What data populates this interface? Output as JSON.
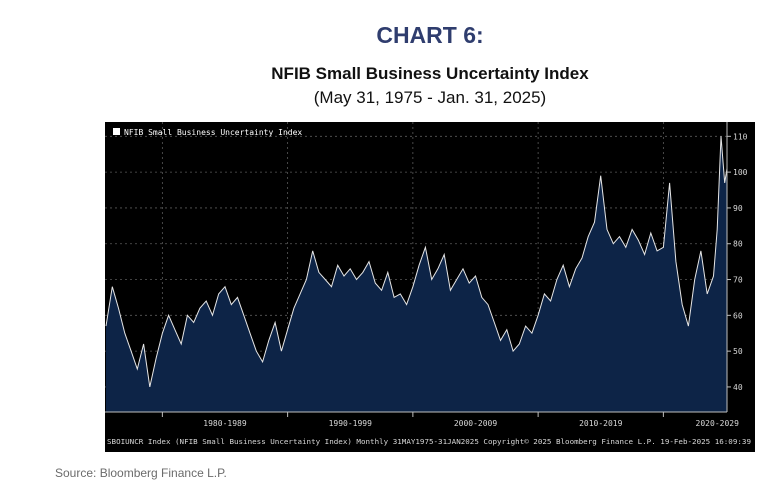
{
  "header": {
    "chart_label": "CHART 6:",
    "title": "NFIB Small Business Uncertainty Index",
    "subtitle": "(May 31, 1975 - Jan. 31, 2025)"
  },
  "source": "Source: Bloomberg Finance L.P.",
  "chart_data": {
    "type": "area",
    "title": "NFIB Small Business Uncertainty Index",
    "legend": "NFIB Small Business Uncertainty Index",
    "legend_position": "top-left",
    "footer": "SBOIUNCR Index (NFIB Small Business Uncertainty Index) Monthly 31MAY1975-31JAN2025 Copyright© 2025 Bloomberg Finance L.P.  19-Feb-2025 16:09:39",
    "x_range": [
      1975.42,
      2025.08
    ],
    "ylim": [
      33,
      114
    ],
    "y_axis_side": "right",
    "y_ticks": [
      40,
      50,
      60,
      70,
      80,
      90,
      100,
      110
    ],
    "x_ticks": [
      {
        "label": "1980-1989",
        "x": 1985
      },
      {
        "label": "1990-1999",
        "x": 1995
      },
      {
        "label": "2000-2009",
        "x": 2005
      },
      {
        "label": "2010-2019",
        "x": 2015
      },
      {
        "label": "2020-2029",
        "x": 2024.3
      }
    ],
    "x_dividers": [
      1980,
      1990,
      2000,
      2010,
      2020
    ],
    "grid": true,
    "colors": {
      "background": "#000000",
      "fill": "#0d2447",
      "line": "#e6e6e6",
      "grid": "#5a5a5a",
      "text": "#d8d8d8"
    },
    "x": [
      1975.5,
      1976.0,
      1976.5,
      1977.0,
      1977.5,
      1978.0,
      1978.5,
      1979.0,
      1979.5,
      1980.0,
      1980.5,
      1981.0,
      1981.5,
      1982.0,
      1982.5,
      1983.0,
      1983.5,
      1984.0,
      1984.5,
      1985.0,
      1985.5,
      1986.0,
      1986.5,
      1987.0,
      1987.5,
      1988.0,
      1988.5,
      1989.0,
      1989.5,
      1990.0,
      1990.5,
      1991.0,
      1991.5,
      1992.0,
      1992.5,
      1993.0,
      1993.5,
      1994.0,
      1994.5,
      1995.0,
      1995.5,
      1996.0,
      1996.5,
      1997.0,
      1997.5,
      1998.0,
      1998.5,
      1999.0,
      1999.5,
      2000.0,
      2000.5,
      2001.0,
      2001.5,
      2002.0,
      2002.5,
      2003.0,
      2003.5,
      2004.0,
      2004.5,
      2005.0,
      2005.5,
      2006.0,
      2006.5,
      2007.0,
      2007.5,
      2008.0,
      2008.5,
      2009.0,
      2009.5,
      2010.0,
      2010.5,
      2011.0,
      2011.5,
      2012.0,
      2012.5,
      2013.0,
      2013.5,
      2014.0,
      2014.5,
      2015.0,
      2015.5,
      2016.0,
      2016.5,
      2017.0,
      2017.5,
      2018.0,
      2018.5,
      2019.0,
      2019.5,
      2020.0,
      2020.5,
      2021.0,
      2021.5,
      2022.0,
      2022.5,
      2023.0,
      2023.5,
      2024.0,
      2024.3,
      2024.6,
      2024.9,
      2025.08
    ],
    "values": [
      57,
      68,
      62,
      55,
      50,
      45,
      52,
      40,
      48,
      55,
      60,
      56,
      52,
      60,
      58,
      62,
      64,
      60,
      66,
      68,
      63,
      65,
      60,
      55,
      50,
      47,
      53,
      58,
      50,
      56,
      62,
      66,
      70,
      78,
      72,
      70,
      68,
      74,
      71,
      73,
      70,
      72,
      75,
      69,
      67,
      72,
      65,
      66,
      63,
      68,
      74,
      79,
      70,
      73,
      77,
      67,
      70,
      73,
      69,
      71,
      65,
      63,
      58,
      53,
      56,
      50,
      52,
      57,
      55,
      60,
      66,
      64,
      70,
      74,
      68,
      73,
      76,
      82,
      86,
      99,
      84,
      80,
      82,
      79,
      84,
      81,
      77,
      83,
      78,
      79,
      97,
      75,
      63,
      57,
      70,
      78,
      66,
      71,
      84,
      110,
      97,
      101
    ],
    "series": [
      {
        "name": "NFIB Small Business Uncertainty Index"
      }
    ]
  }
}
